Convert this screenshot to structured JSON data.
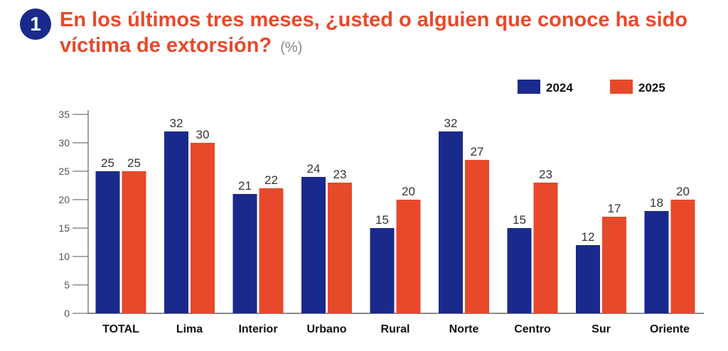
{
  "header": {
    "number": "1",
    "question": "En los últimos tres meses, ¿usted o alguien que conoce ha sido víctima de extorsión?",
    "unit": "(%)"
  },
  "colors": {
    "series_2024": "#1a2a8c",
    "series_2025": "#e8492a",
    "title": "#e8492a",
    "badge": "#1a2a8c"
  },
  "chart_data": {
    "type": "bar",
    "categories": [
      "TOTAL",
      "Lima",
      "Interior",
      "Urbano",
      "Rural",
      "Norte",
      "Centro",
      "Sur",
      "Oriente"
    ],
    "series": [
      {
        "name": "2024",
        "values": [
          25,
          32,
          21,
          24,
          15,
          32,
          15,
          12,
          18
        ]
      },
      {
        "name": "2025",
        "values": [
          25,
          30,
          22,
          23,
          20,
          27,
          23,
          17,
          20
        ]
      }
    ],
    "yticks": [
      0,
      5,
      10,
      15,
      20,
      25,
      30,
      35
    ],
    "ylim": [
      0,
      35
    ],
    "grid": false,
    "legend": "top-right",
    "xlabel": "",
    "ylabel": ""
  }
}
